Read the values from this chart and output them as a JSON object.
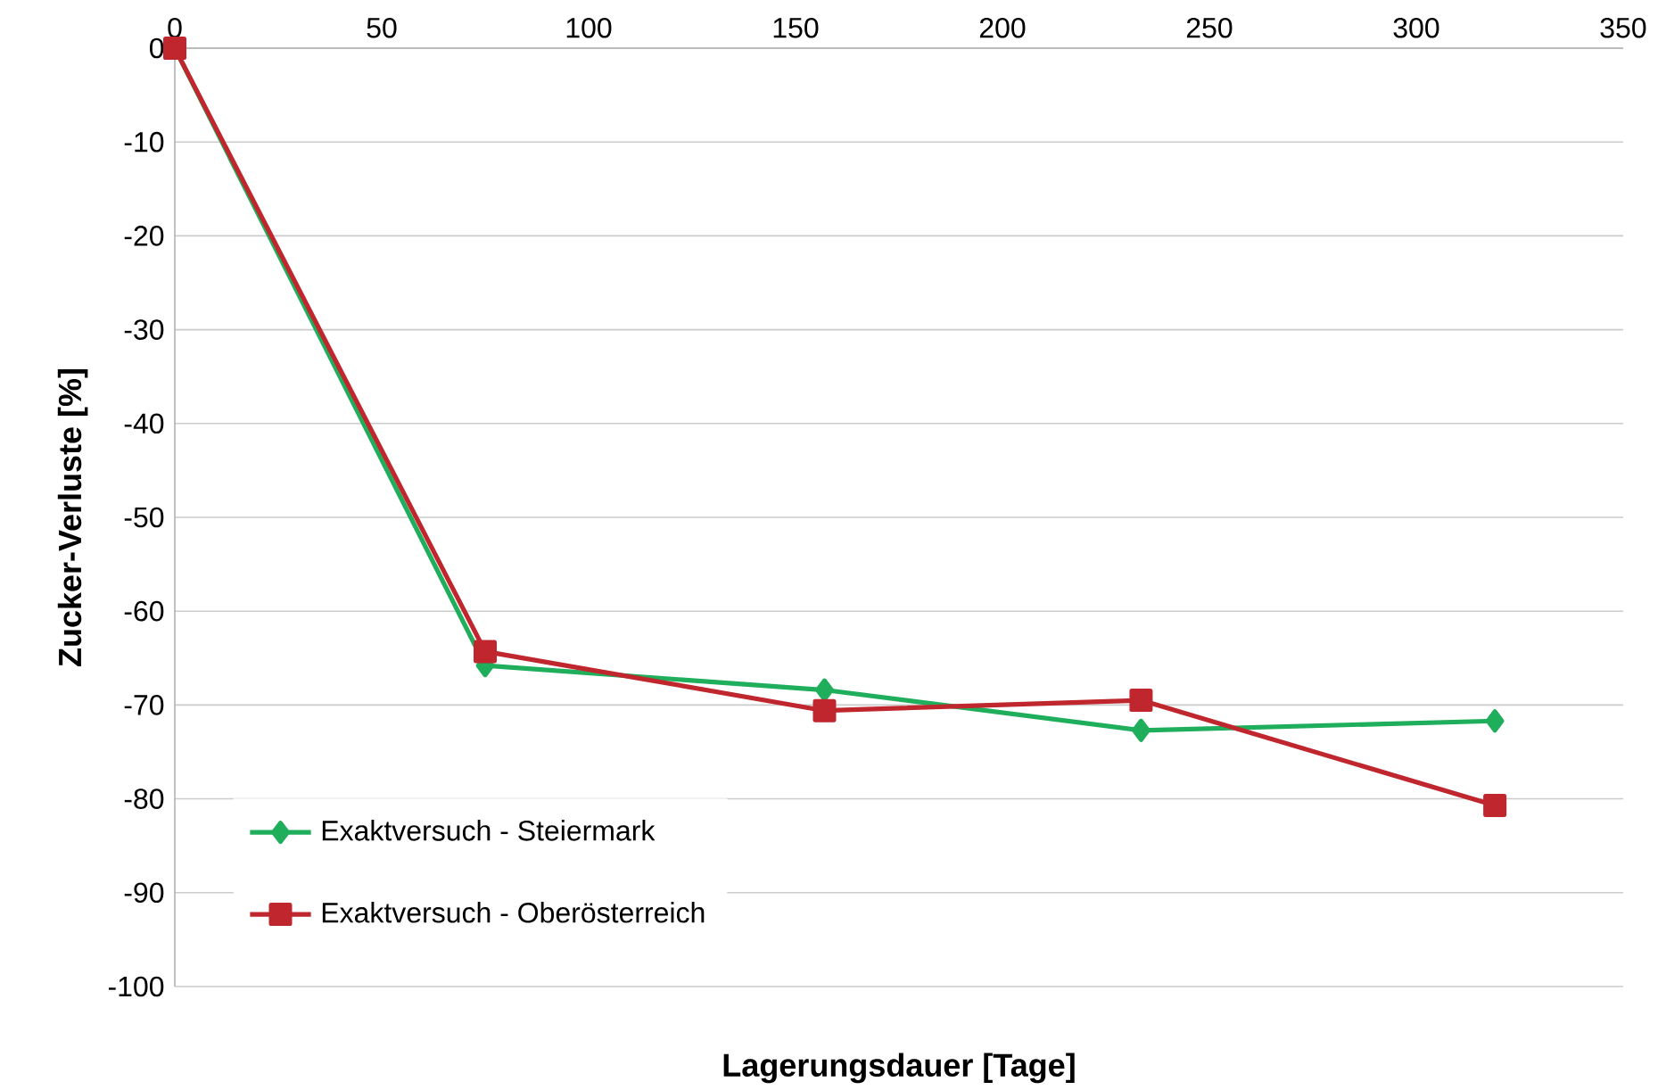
{
  "chart_data": {
    "type": "line",
    "xlabel": "Lagerungsdauer [Tage]",
    "ylabel": "Zucker-Verluste [%]",
    "xlim": [
      0,
      350
    ],
    "xticks": [
      0,
      50,
      100,
      150,
      200,
      250,
      300,
      350
    ],
    "ylim": [
      -100,
      0
    ],
    "yticks": [
      -100,
      -90,
      -80,
      -70,
      -60,
      -50,
      -40,
      -30,
      -20,
      -10,
      0
    ],
    "grid": "y",
    "legend": "bottom left",
    "series": [
      {
        "name": "Exaktversuch - Steiermark",
        "color": "#1fae5b",
        "marker": "diamond",
        "x": [
          0,
          75,
          157,
          233.5,
          319
        ],
        "values": [
          0,
          -65.8,
          -68.4,
          -72.7,
          -71.7
        ]
      },
      {
        "name": "Exaktversuch - Oberösterreich",
        "color": "#c0262d",
        "marker": "square",
        "x": [
          0,
          75,
          157,
          233.5,
          319
        ],
        "values": [
          0,
          -64.3,
          -70.6,
          -69.5,
          -80.7
        ]
      }
    ]
  }
}
